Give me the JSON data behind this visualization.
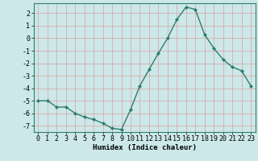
{
  "x": [
    0,
    1,
    2,
    3,
    4,
    5,
    6,
    7,
    8,
    9,
    10,
    11,
    12,
    13,
    14,
    15,
    16,
    17,
    18,
    19,
    20,
    21,
    22,
    23
  ],
  "y": [
    -5,
    -5,
    -5.5,
    -5.5,
    -6,
    -6.3,
    -6.5,
    -6.8,
    -7.2,
    -7.3,
    -5.7,
    -3.8,
    -2.5,
    -1.2,
    0,
    1.5,
    2.5,
    2.3,
    0.3,
    -0.8,
    -1.7,
    -2.3,
    -2.6,
    -3.8
  ],
  "line_color": "#2e7d6e",
  "marker": "D",
  "marker_size": 2.0,
  "bg_color": "#cce8e8",
  "grid_color": "#dda0a0",
  "xlabel": "Humidex (Indice chaleur)",
  "xlim": [
    -0.5,
    23.5
  ],
  "ylim": [
    -7.5,
    2.8
  ],
  "yticks": [
    -7,
    -6,
    -5,
    -4,
    -3,
    -2,
    -1,
    0,
    1,
    2
  ],
  "xticks": [
    0,
    1,
    2,
    3,
    4,
    5,
    6,
    7,
    8,
    9,
    10,
    11,
    12,
    13,
    14,
    15,
    16,
    17,
    18,
    19,
    20,
    21,
    22,
    23
  ],
  "xlabel_fontsize": 6.5,
  "tick_fontsize": 6.0,
  "line_width": 1.0
}
